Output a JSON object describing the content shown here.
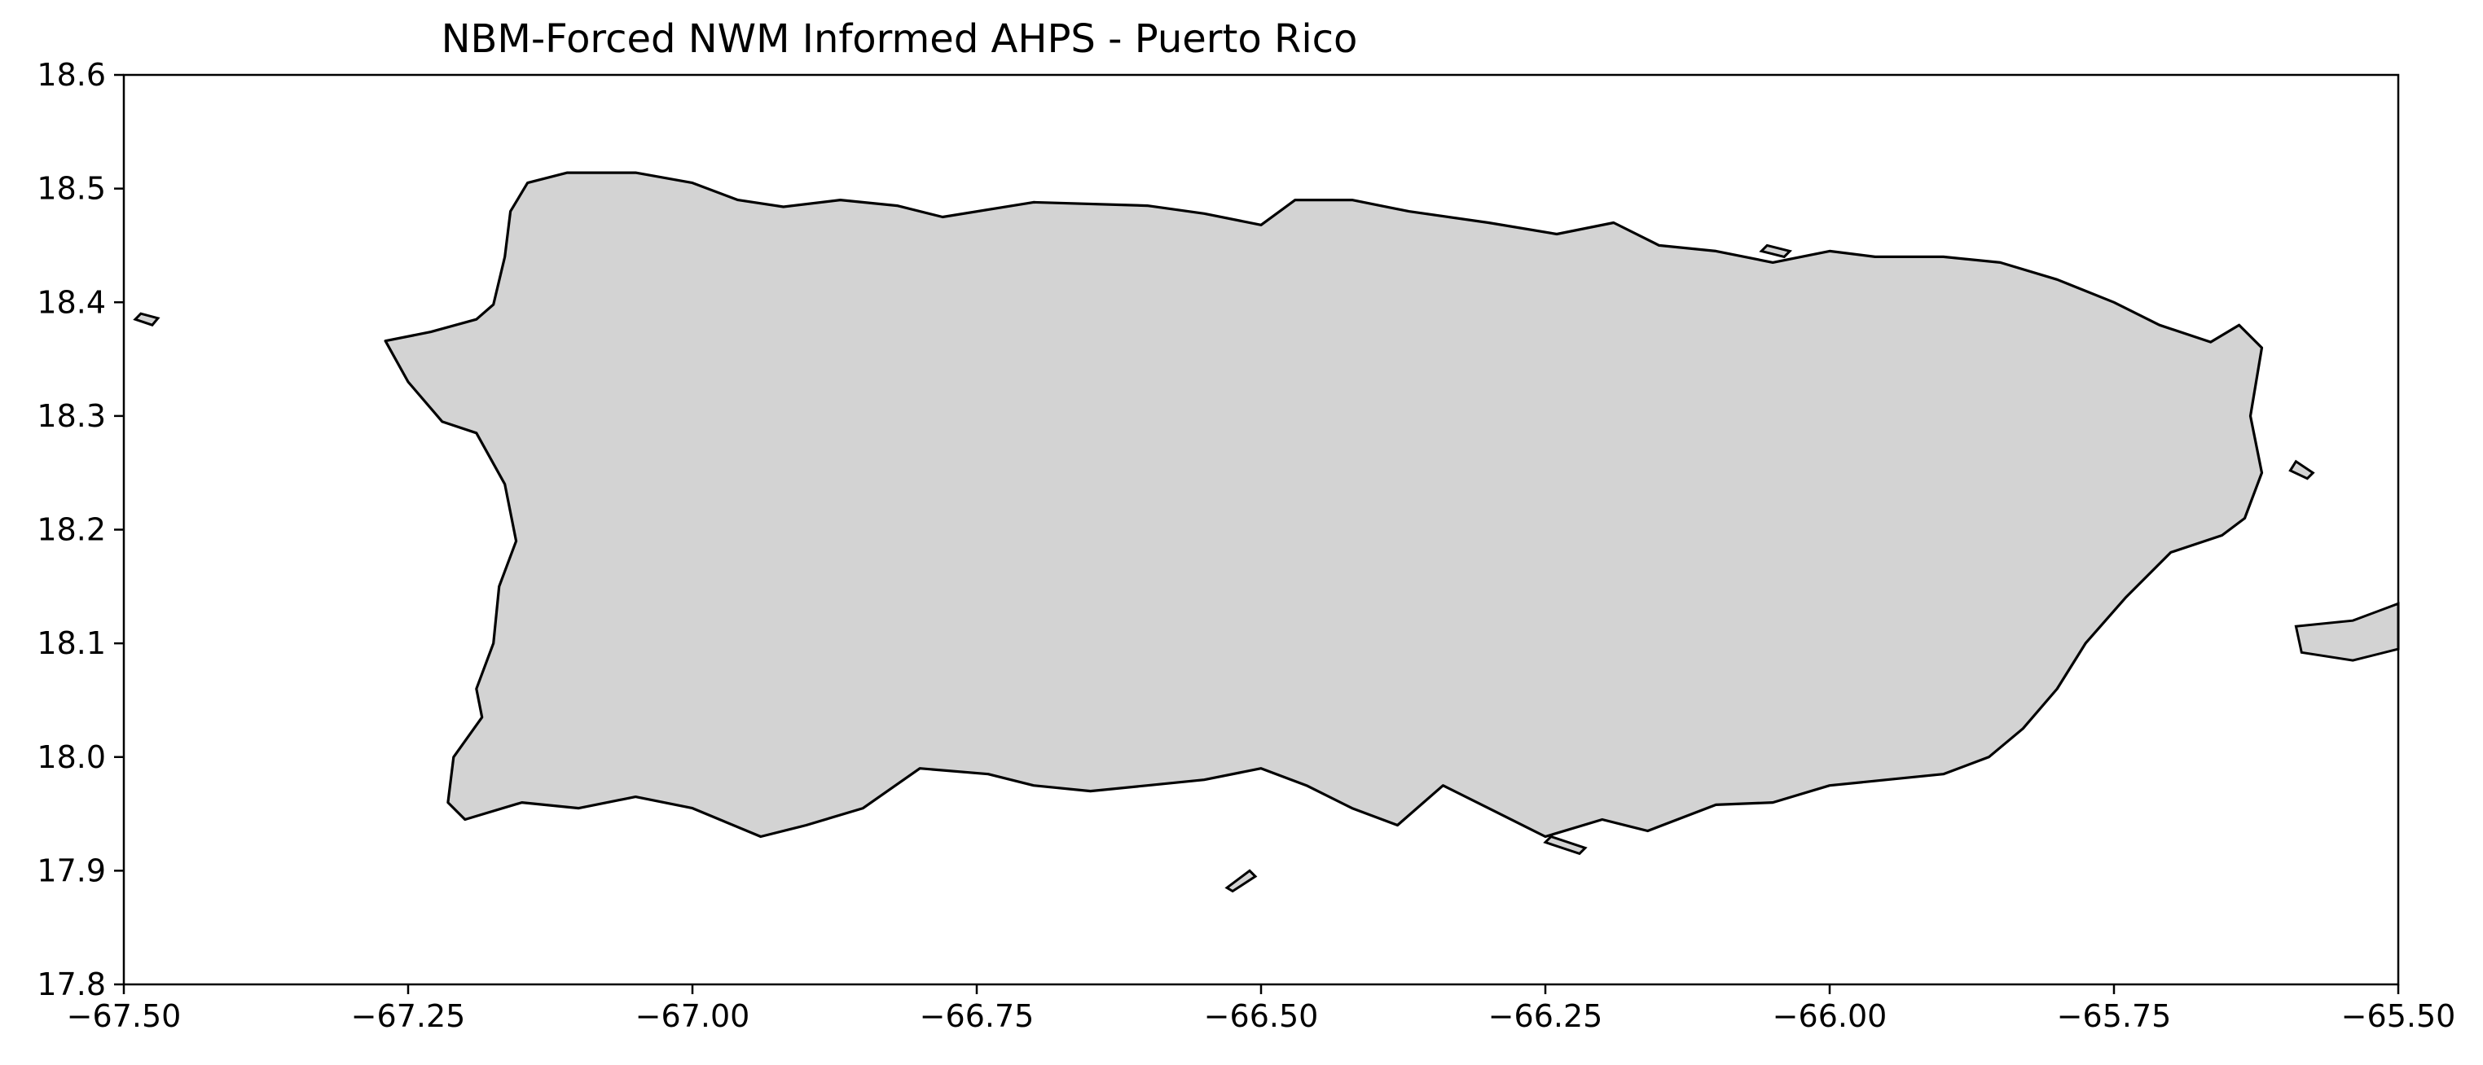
{
  "chart_data": {
    "type": "map",
    "title": "NBM-Forced NWM Informed AHPS - Puerto Rico",
    "xlabel": "",
    "ylabel": "",
    "xlim": [
      -67.5,
      -65.5
    ],
    "ylim": [
      17.8,
      18.6
    ],
    "grid": false,
    "land_color": "#d3d3d3",
    "coast_color": "#000000",
    "x_ticks": [
      {
        "value": -67.5,
        "label": "−67.50"
      },
      {
        "value": -67.25,
        "label": "−67.25"
      },
      {
        "value": -67.0,
        "label": "−67.00"
      },
      {
        "value": -66.75,
        "label": "−66.75"
      },
      {
        "value": -66.5,
        "label": "−66.50"
      },
      {
        "value": -66.25,
        "label": "−66.25"
      },
      {
        "value": -66.0,
        "label": "−66.00"
      },
      {
        "value": -65.75,
        "label": "−65.75"
      },
      {
        "value": -65.5,
        "label": "−65.50"
      }
    ],
    "y_ticks": [
      {
        "value": 18.6,
        "label": "18.6"
      },
      {
        "value": 18.5,
        "label": "18.5"
      },
      {
        "value": 18.4,
        "label": "18.4"
      },
      {
        "value": 18.3,
        "label": "18.3"
      },
      {
        "value": 18.2,
        "label": "18.2"
      },
      {
        "value": 18.1,
        "label": "18.1"
      },
      {
        "value": 18.0,
        "label": "18.0"
      },
      {
        "value": 17.9,
        "label": "17.9"
      },
      {
        "value": 17.8,
        "label": "17.8"
      }
    ],
    "main_island": [
      [
        -67.27,
        18.366
      ],
      [
        -67.23,
        18.374
      ],
      [
        -67.19,
        18.385
      ],
      [
        -67.175,
        18.398
      ],
      [
        -67.165,
        18.44
      ],
      [
        -67.16,
        18.48
      ],
      [
        -67.145,
        18.505
      ],
      [
        -67.11,
        18.514
      ],
      [
        -67.05,
        18.514
      ],
      [
        -67.0,
        18.505
      ],
      [
        -66.96,
        18.49
      ],
      [
        -66.92,
        18.484
      ],
      [
        -66.87,
        18.49
      ],
      [
        -66.82,
        18.485
      ],
      [
        -66.78,
        18.475
      ],
      [
        -66.7,
        18.488
      ],
      [
        -66.6,
        18.485
      ],
      [
        -66.55,
        18.478
      ],
      [
        -66.5,
        18.468
      ],
      [
        -66.47,
        18.49
      ],
      [
        -66.42,
        18.49
      ],
      [
        -66.37,
        18.48
      ],
      [
        -66.3,
        18.47
      ],
      [
        -66.24,
        18.46
      ],
      [
        -66.19,
        18.47
      ],
      [
        -66.15,
        18.45
      ],
      [
        -66.1,
        18.445
      ],
      [
        -66.05,
        18.435
      ],
      [
        -66.0,
        18.445
      ],
      [
        -65.96,
        18.44
      ],
      [
        -65.9,
        18.44
      ],
      [
        -65.85,
        18.435
      ],
      [
        -65.8,
        18.42
      ],
      [
        -65.75,
        18.4
      ],
      [
        -65.71,
        18.38
      ],
      [
        -65.665,
        18.365
      ],
      [
        -65.64,
        18.38
      ],
      [
        -65.62,
        18.36
      ],
      [
        -65.63,
        18.3
      ],
      [
        -65.62,
        18.25
      ],
      [
        -65.635,
        18.21
      ],
      [
        -65.655,
        18.195
      ],
      [
        -65.7,
        18.18
      ],
      [
        -65.74,
        18.14
      ],
      [
        -65.775,
        18.1
      ],
      [
        -65.8,
        18.06
      ],
      [
        -65.83,
        18.025
      ],
      [
        -65.86,
        18.0
      ],
      [
        -65.9,
        17.985
      ],
      [
        -65.95,
        17.98
      ],
      [
        -66.0,
        17.975
      ],
      [
        -66.05,
        17.96
      ],
      [
        -66.1,
        17.958
      ],
      [
        -66.16,
        17.935
      ],
      [
        -66.2,
        17.945
      ],
      [
        -66.25,
        17.93
      ],
      [
        -66.3,
        17.955
      ],
      [
        -66.34,
        17.975
      ],
      [
        -66.38,
        17.94
      ],
      [
        -66.42,
        17.955
      ],
      [
        -66.46,
        17.975
      ],
      [
        -66.5,
        17.99
      ],
      [
        -66.55,
        17.98
      ],
      [
        -66.6,
        17.975
      ],
      [
        -66.65,
        17.97
      ],
      [
        -66.7,
        17.975
      ],
      [
        -66.74,
        17.985
      ],
      [
        -66.8,
        17.99
      ],
      [
        -66.85,
        17.955
      ],
      [
        -66.9,
        17.94
      ],
      [
        -66.94,
        17.93
      ],
      [
        -67.0,
        17.955
      ],
      [
        -67.05,
        17.965
      ],
      [
        -67.1,
        17.955
      ],
      [
        -67.15,
        17.96
      ],
      [
        -67.2,
        17.945
      ],
      [
        -67.215,
        17.96
      ],
      [
        -67.21,
        18.0
      ],
      [
        -67.185,
        18.035
      ],
      [
        -67.19,
        18.06
      ],
      [
        -67.175,
        18.1
      ],
      [
        -67.17,
        18.15
      ],
      [
        -67.155,
        18.19
      ],
      [
        -67.165,
        18.24
      ],
      [
        -67.19,
        18.285
      ],
      [
        -67.22,
        18.295
      ],
      [
        -67.25,
        18.33
      ]
    ],
    "islets": [
      [
        [
          -67.485,
          18.39
        ],
        [
          -67.47,
          18.386
        ],
        [
          -67.475,
          18.38
        ],
        [
          -67.49,
          18.385
        ]
      ],
      [
        [
          -65.59,
          18.115
        ],
        [
          -65.54,
          18.12
        ],
        [
          -65.5,
          18.135
        ],
        [
          -65.5,
          18.095
        ],
        [
          -65.54,
          18.085
        ],
        [
          -65.585,
          18.092
        ]
      ],
      [
        [
          -66.53,
          17.885
        ],
        [
          -66.51,
          17.9
        ],
        [
          -66.505,
          17.895
        ],
        [
          -66.525,
          17.882
        ]
      ],
      [
        [
          -65.59,
          18.26
        ],
        [
          -65.575,
          18.25
        ],
        [
          -65.58,
          18.245
        ],
        [
          -65.595,
          18.252
        ]
      ],
      [
        [
          -66.25,
          17.925
        ],
        [
          -66.22,
          17.915
        ],
        [
          -66.215,
          17.92
        ],
        [
          -66.245,
          17.93
        ]
      ],
      [
        [
          -66.06,
          18.445
        ],
        [
          -66.04,
          18.44
        ],
        [
          -66.035,
          18.445
        ],
        [
          -66.055,
          18.45
        ]
      ]
    ]
  }
}
